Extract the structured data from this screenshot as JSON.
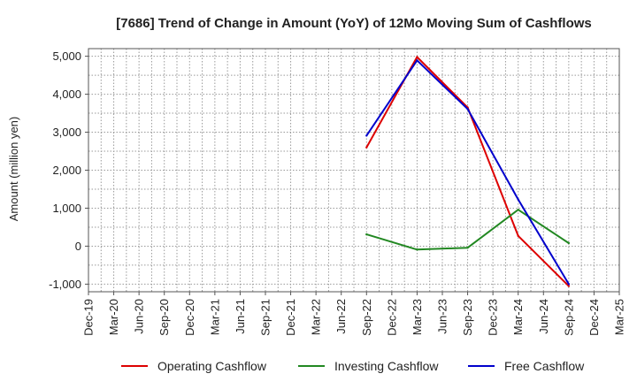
{
  "chart_data": {
    "type": "line",
    "title": "[7686]  Trend of Change in Amount (YoY) of 12Mo Moving Sum of Cashflows",
    "ylabel": "Amount (million yen)",
    "xlabel": "",
    "ylim": [
      -1200,
      5200
    ],
    "yticks": [
      -1000,
      0,
      1000,
      2000,
      3000,
      4000,
      5000
    ],
    "ytick_labels": [
      "-1,000",
      "0",
      "1,000",
      "2,000",
      "3,000",
      "4,000",
      "5,000"
    ],
    "categories": [
      "Dec-19",
      "Mar-20",
      "Jun-20",
      "Sep-20",
      "Dec-20",
      "Mar-21",
      "Jun-21",
      "Sep-21",
      "Dec-21",
      "Mar-22",
      "Jun-22",
      "Sep-22",
      "Dec-22",
      "Mar-23",
      "Jun-23",
      "Sep-23",
      "Dec-23",
      "Mar-24",
      "Jun-24",
      "Sep-24",
      "Dec-24",
      "Mar-25"
    ],
    "series": [
      {
        "name": "Operating Cashflow",
        "color": "#dd0000",
        "values": [
          null,
          null,
          null,
          null,
          null,
          null,
          null,
          null,
          null,
          null,
          null,
          2600,
          null,
          4980,
          null,
          3650,
          null,
          270,
          null,
          -1050,
          null,
          null
        ]
      },
      {
        "name": "Investing Cashflow",
        "color": "#228822",
        "values": [
          null,
          null,
          null,
          null,
          null,
          null,
          null,
          null,
          null,
          null,
          null,
          310,
          null,
          -90,
          null,
          -40,
          null,
          960,
          null,
          80,
          null,
          null
        ]
      },
      {
        "name": "Free Cashflow",
        "color": "#0000cc",
        "values": [
          null,
          null,
          null,
          null,
          null,
          null,
          null,
          null,
          null,
          null,
          null,
          2910,
          null,
          4890,
          null,
          3610,
          null,
          1230,
          null,
          -1000,
          null,
          null
        ]
      }
    ],
    "grid": true,
    "legend_position": "bottom"
  }
}
